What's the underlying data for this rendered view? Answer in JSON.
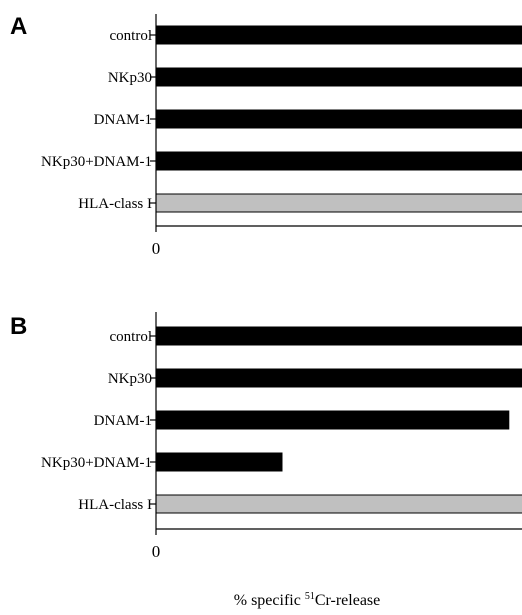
{
  "chart_data": [
    {
      "type": "bar",
      "orientation": "horizontal",
      "panel": "A",
      "categories": [
        "control",
        "NKp30",
        "DNAM-1",
        "NKp30+DNAM-1",
        "HLA-class I"
      ],
      "values": [
        43,
        27,
        29,
        17,
        63
      ],
      "bar_colors": [
        "#000000",
        "#000000",
        "#000000",
        "#000000",
        "#c0c0c0"
      ],
      "xlim": [
        0,
        70
      ],
      "xticks": [
        "0",
        "10",
        "20",
        "30",
        "40",
        "50",
        "60",
        "70"
      ]
    },
    {
      "type": "bar",
      "orientation": "horizontal",
      "panel": "B",
      "categories": [
        "control",
        "NKp30",
        "DNAM-1",
        "NKp30+DNAM-1",
        "HLA-class I"
      ],
      "values": [
        40,
        26.5,
        7,
        2.5,
        40
      ],
      "bar_colors": [
        "#000000",
        "#000000",
        "#000000",
        "#000000",
        "#c0c0c0"
      ],
      "xlim": [
        0,
        70
      ],
      "xticks": [
        "0",
        "10",
        "20",
        "30",
        "40",
        "50",
        "60",
        "70"
      ]
    }
  ],
  "xlabel": {
    "prefix": "% specific ",
    "superscript": "51",
    "suffix": "Cr-release"
  }
}
